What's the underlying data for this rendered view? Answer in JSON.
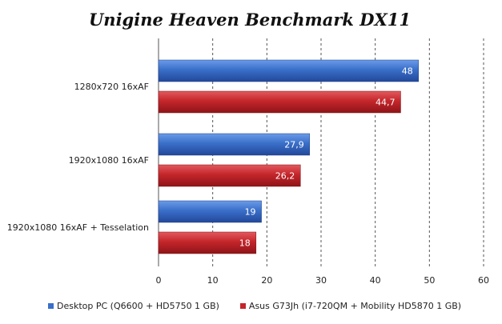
{
  "chart_data": {
    "type": "bar",
    "orientation": "horizontal",
    "title": "Unigine Heaven Benchmark DX11",
    "categories": [
      "1280x720 16xAF",
      "1920x1080 16xAF",
      "1920x1080 16xAF + Tesselation"
    ],
    "series": [
      {
        "name": "Desktop PC (Q6600 + HD5750 1 GB)",
        "values": [
          48,
          27.9,
          19
        ],
        "labels": [
          "48",
          "27,9",
          "19"
        ],
        "color": "#3a6fc9"
      },
      {
        "name": "Asus G73Jh (i7-720QM + Mobility HD5870 1 GB)",
        "values": [
          44.7,
          26.2,
          18
        ],
        "labels": [
          "44,7",
          "26,2",
          "18"
        ],
        "color": "#c4262b"
      }
    ],
    "xlim": [
      0,
      60
    ],
    "xticks": [
      0,
      10,
      20,
      30,
      40,
      50,
      60
    ],
    "grid": "vertical-dashed",
    "legend_position": "bottom"
  }
}
